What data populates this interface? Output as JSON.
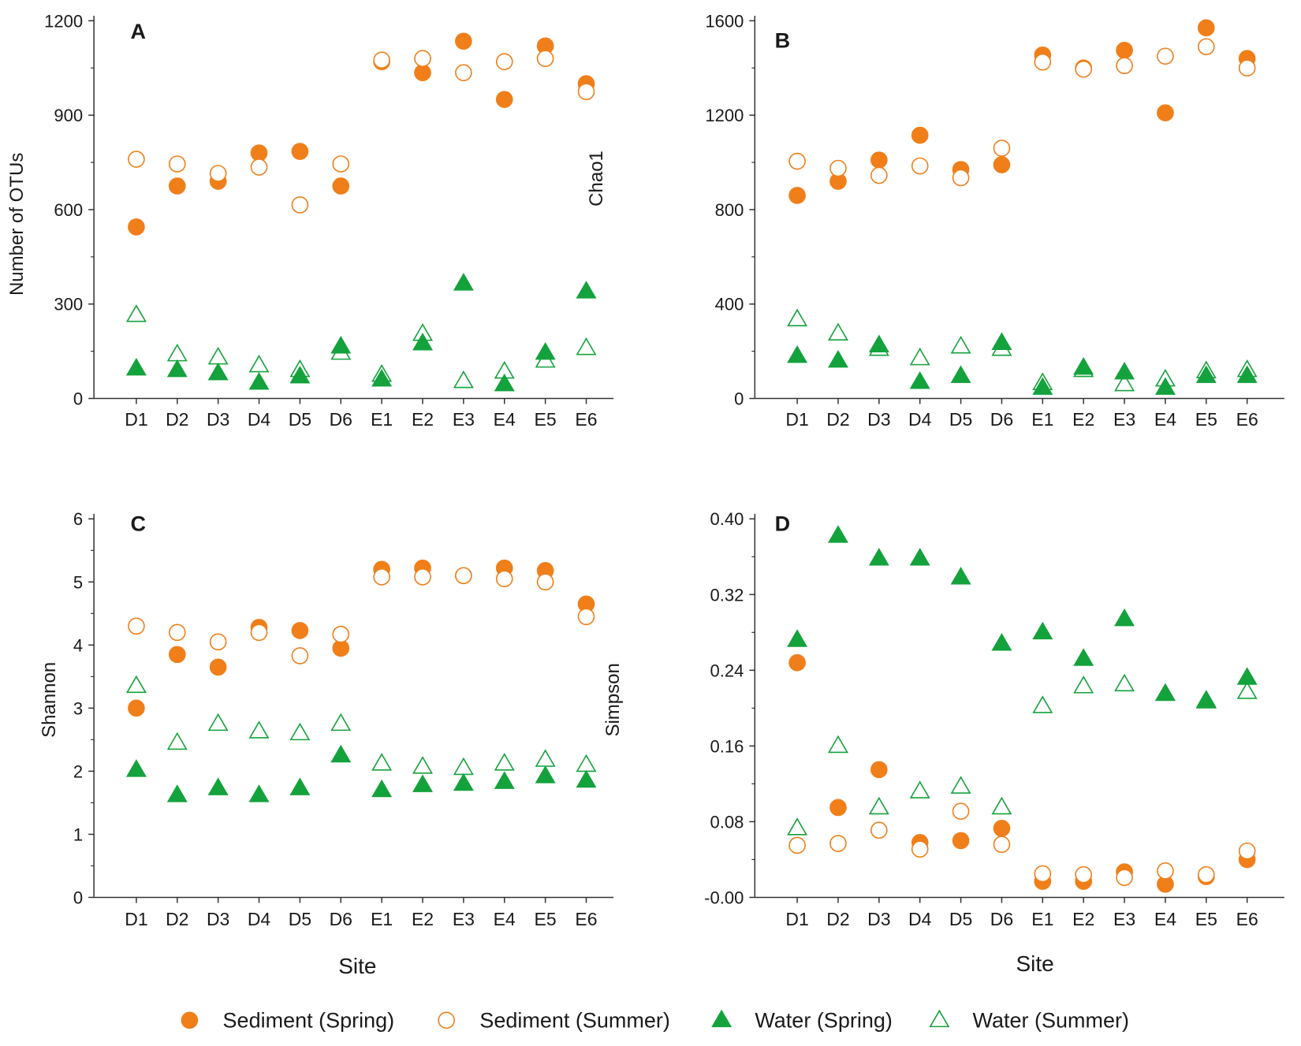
{
  "colors": {
    "sediment": "#F07F1A",
    "water": "#14A23C",
    "axis": "#333333"
  },
  "series_names": [
    "Sediment (Spring)",
    "Sediment (Summer)",
    "Water (Spring)",
    "Water (Summer)"
  ],
  "legend": [
    {
      "name": "Sediment (Spring)",
      "marker": "filled-circle",
      "color_key": "sediment"
    },
    {
      "name": "Sediment (Summer)",
      "marker": "open-circle",
      "color_key": "sediment"
    },
    {
      "name": "Water (Spring)",
      "marker": "filled-triangle",
      "color_key": "water"
    },
    {
      "name": "Water (Summer)",
      "marker": "open-triangle",
      "color_key": "water"
    }
  ],
  "xlabel_shared": "Site",
  "chart_data": [
    {
      "type": "scatter",
      "panel": "A",
      "title": "",
      "ylabel": "Number of OTUs",
      "annotation": "Chao1",
      "xlabel": "",
      "categories": [
        "D1",
        "D2",
        "D3",
        "D4",
        "D5",
        "D6",
        "E1",
        "E2",
        "E3",
        "E4",
        "E5",
        "E6"
      ],
      "ylim": [
        0,
        1200
      ],
      "yticks": [
        0,
        300,
        600,
        900,
        1200
      ],
      "yticklabels": [
        "0",
        "300",
        "600",
        "900",
        "1200"
      ],
      "series": [
        {
          "name": "Sediment (Spring)",
          "values": [
            545,
            675,
            690,
            780,
            785,
            675,
            1070,
            1035,
            1135,
            950,
            1120,
            1000
          ]
        },
        {
          "name": "Sediment (Summer)",
          "values": [
            760,
            745,
            715,
            735,
            615,
            745,
            1075,
            1080,
            1035,
            1070,
            1080,
            975
          ]
        },
        {
          "name": "Water (Spring)",
          "values": [
            95,
            90,
            80,
            50,
            70,
            165,
            60,
            175,
            365,
            45,
            145,
            340
          ]
        },
        {
          "name": "Water (Summer)",
          "values": [
            265,
            140,
            130,
            105,
            90,
            145,
            75,
            205,
            55,
            85,
            120,
            160
          ]
        }
      ]
    },
    {
      "type": "scatter",
      "panel": "B",
      "title": "",
      "ylabel": "",
      "xlabel": "",
      "categories": [
        "D1",
        "D2",
        "D3",
        "D4",
        "D5",
        "D6",
        "E1",
        "E2",
        "E3",
        "E4",
        "E5",
        "E6"
      ],
      "ylim": [
        0,
        1600
      ],
      "yticks": [
        0,
        400,
        800,
        1200,
        1600
      ],
      "yticklabels": [
        "0",
        "400",
        "800",
        "1200",
        "1600"
      ],
      "series": [
        {
          "name": "Sediment (Spring)",
          "values": [
            860,
            920,
            1010,
            1115,
            970,
            990,
            1455,
            1400,
            1475,
            1210,
            1570,
            1440
          ]
        },
        {
          "name": "Sediment (Summer)",
          "values": [
            1005,
            975,
            945,
            985,
            935,
            1060,
            1425,
            1395,
            1410,
            1450,
            1490,
            1400
          ]
        },
        {
          "name": "Water (Spring)",
          "values": [
            180,
            160,
            225,
            70,
            95,
            235,
            45,
            130,
            110,
            45,
            95,
            95
          ]
        },
        {
          "name": "Water (Summer)",
          "values": [
            335,
            275,
            210,
            170,
            220,
            210,
            65,
            120,
            60,
            80,
            115,
            120
          ]
        }
      ]
    },
    {
      "type": "scatter",
      "panel": "C",
      "title": "",
      "ylabel": "Shannon",
      "annotation": "Simpson",
      "xlabel": "",
      "categories": [
        "D1",
        "D2",
        "D3",
        "D4",
        "D5",
        "D6",
        "E1",
        "E2",
        "E3",
        "E4",
        "E5",
        "E6"
      ],
      "ylim": [
        0,
        6
      ],
      "yticks": [
        0,
        1,
        2,
        3,
        4,
        5,
        6
      ],
      "yticklabels": [
        "0",
        "1",
        "2",
        "3",
        "4",
        "5",
        "6"
      ],
      "series": [
        {
          "name": "Sediment (Spring)",
          "values": [
            3.0,
            3.85,
            3.65,
            4.28,
            4.23,
            3.95,
            5.2,
            5.22,
            5.1,
            5.22,
            5.18,
            4.65
          ]
        },
        {
          "name": "Sediment (Summer)",
          "values": [
            4.3,
            4.2,
            4.05,
            4.2,
            3.83,
            4.17,
            5.08,
            5.08,
            5.1,
            5.05,
            5.0,
            4.45
          ]
        },
        {
          "name": "Water (Spring)",
          "values": [
            2.02,
            1.62,
            1.73,
            1.62,
            1.73,
            2.25,
            1.7,
            1.78,
            1.8,
            1.83,
            1.92,
            1.85
          ]
        },
        {
          "name": "Water (Summer)",
          "values": [
            3.35,
            2.45,
            2.75,
            2.63,
            2.6,
            2.75,
            2.12,
            2.07,
            2.05,
            2.12,
            2.18,
            2.1
          ]
        }
      ]
    },
    {
      "type": "scatter",
      "panel": "D",
      "title": "",
      "ylabel": "",
      "xlabel": "",
      "categories": [
        "D1",
        "D2",
        "D3",
        "D4",
        "D5",
        "D6",
        "E1",
        "E2",
        "E3",
        "E4",
        "E5",
        "E6"
      ],
      "ylim": [
        0,
        0.4
      ],
      "yticks": [
        0,
        0.08,
        0.16,
        0.24,
        0.32,
        0.4
      ],
      "yticklabels": [
        "-0.00",
        "0.08",
        "0.16",
        "0.24",
        "0.32",
        "0.40"
      ],
      "series": [
        {
          "name": "Sediment (Spring)",
          "values": [
            0.248,
            0.095,
            0.135,
            0.058,
            0.06,
            0.073,
            0.017,
            0.017,
            0.027,
            0.014,
            0.022,
            0.04
          ]
        },
        {
          "name": "Sediment (Summer)",
          "values": [
            0.055,
            0.057,
            0.071,
            0.051,
            0.091,
            0.056,
            0.025,
            0.024,
            0.021,
            0.028,
            0.024,
            0.049
          ]
        },
        {
          "name": "Water (Spring)",
          "values": [
            0.272,
            0.382,
            0.358,
            0.358,
            0.338,
            0.268,
            0.28,
            0.252,
            0.294,
            0.215,
            0.208,
            0.232
          ]
        },
        {
          "name": "Water (Summer)",
          "values": [
            0.073,
            0.16,
            0.095,
            0.112,
            0.117,
            0.095,
            0.202,
            0.223,
            0.225,
            0.215,
            0.207,
            0.217
          ]
        }
      ]
    }
  ]
}
